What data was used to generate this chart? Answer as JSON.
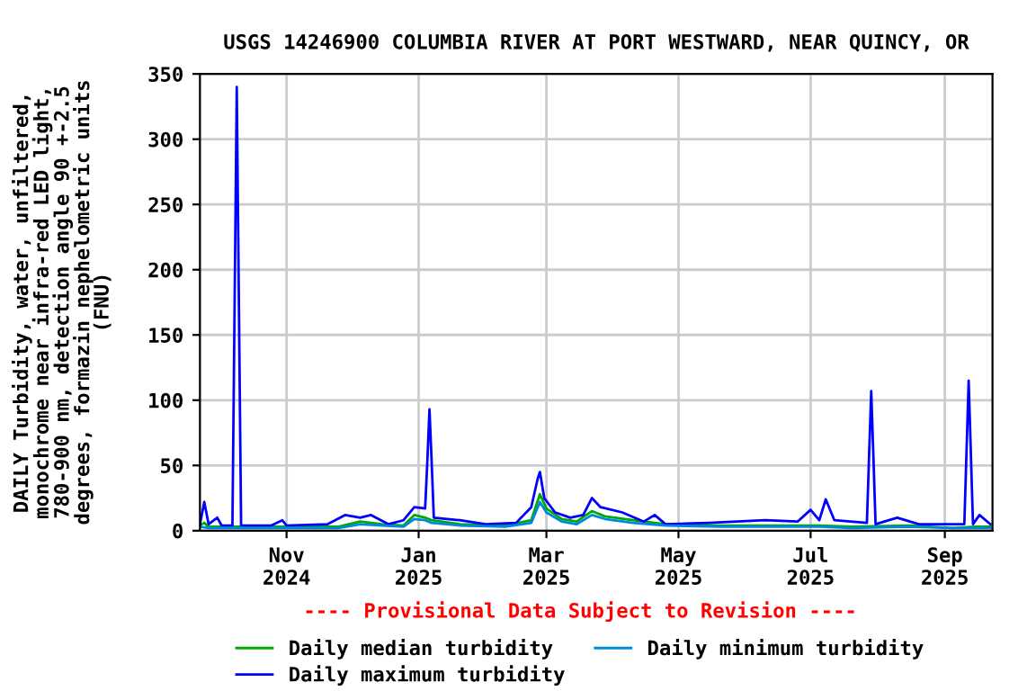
{
  "chart_data": {
    "type": "line",
    "title": "USGS 14246900 COLUMBIA RIVER AT PORT WESTWARD, NEAR QUINCY, OR",
    "ylabel": "DAILY Turbidity, water, unfiltered,\nmonochrome near infra-red LED light,\n780-900 nm, detection angle 90 +-2.5\ndegrees, formazin nephelometric units\n(FNU)",
    "annotations": [
      "---- Provisional Data Subject to Revision ----"
    ],
    "xlim": [
      "2024-09-22",
      "2025-09-23"
    ],
    "xticks": [
      {
        "value": "2024-11-01",
        "label": "Nov\n2024"
      },
      {
        "value": "2025-01-01",
        "label": "Jan\n2025"
      },
      {
        "value": "2025-03-01",
        "label": "Mar\n2025"
      },
      {
        "value": "2025-05-01",
        "label": "May\n2025"
      },
      {
        "value": "2025-07-01",
        "label": "Jul\n2025"
      },
      {
        "value": "2025-09-01",
        "label": "Sep\n2025"
      }
    ],
    "ylim": [
      0,
      350
    ],
    "yticks": [
      0,
      50,
      100,
      150,
      200,
      250,
      300,
      350
    ],
    "grid": true,
    "legend": "bottom",
    "line_style": "solid",
    "marker": "none",
    "series": [
      {
        "name": "Daily median turbidity",
        "color": "#00aa00",
        "x": [
          "2024-09-22",
          "2024-09-24",
          "2024-09-26",
          "2024-10-10",
          "2024-11-01",
          "2024-11-25",
          "2024-12-05",
          "2024-12-15",
          "2024-12-25",
          "2024-12-30",
          "2025-01-04",
          "2025-01-07",
          "2025-01-20",
          "2025-02-10",
          "2025-02-22",
          "2025-02-26",
          "2025-03-01",
          "2025-03-08",
          "2025-03-15",
          "2025-03-22",
          "2025-03-28",
          "2025-04-10",
          "2025-04-25",
          "2025-05-20",
          "2025-06-20",
          "2025-07-05",
          "2025-07-20",
          "2025-08-15",
          "2025-09-05",
          "2025-09-15",
          "2025-09-22"
        ],
        "values": [
          4,
          6,
          3,
          3,
          3,
          3,
          7,
          5,
          4,
          12,
          10,
          8,
          5,
          4,
          8,
          28,
          17,
          9,
          7,
          15,
          11,
          8,
          5,
          4,
          4,
          4,
          3,
          4,
          2,
          3,
          3
        ]
      },
      {
        "name": "Daily maximum turbidity",
        "color": "#0000ff",
        "x": [
          "2024-09-22",
          "2024-09-24",
          "2024-09-26",
          "2024-09-30",
          "2024-10-02",
          "2024-10-07",
          "2024-10-08",
          "2024-10-09",
          "2024-10-10",
          "2024-10-11",
          "2024-10-25",
          "2024-10-30",
          "2024-11-01",
          "2024-11-20",
          "2024-11-28",
          "2024-12-05",
          "2024-12-10",
          "2024-12-18",
          "2024-12-25",
          "2024-12-30",
          "2025-01-04",
          "2025-01-05",
          "2025-01-06",
          "2025-01-07",
          "2025-01-08",
          "2025-01-20",
          "2025-02-01",
          "2025-02-15",
          "2025-02-22",
          "2025-02-25",
          "2025-02-26",
          "2025-02-28",
          "2025-03-05",
          "2025-03-12",
          "2025-03-18",
          "2025-03-22",
          "2025-03-26",
          "2025-04-05",
          "2025-04-15",
          "2025-04-20",
          "2025-04-25",
          "2025-05-15",
          "2025-06-10",
          "2025-06-25",
          "2025-07-01",
          "2025-07-05",
          "2025-07-08",
          "2025-07-12",
          "2025-07-27",
          "2025-07-28",
          "2025-07-29",
          "2025-07-30",
          "2025-07-31",
          "2025-08-10",
          "2025-08-20",
          "2025-09-10",
          "2025-09-11",
          "2025-09-12",
          "2025-09-13",
          "2025-09-14",
          "2025-09-17",
          "2025-09-22"
        ],
        "values": [
          5,
          22,
          5,
          10,
          4,
          4,
          172,
          340,
          172,
          4,
          4,
          8,
          4,
          5,
          12,
          10,
          12,
          5,
          8,
          18,
          17,
          53,
          93,
          53,
          10,
          8,
          5,
          6,
          18,
          40,
          45,
          25,
          14,
          10,
          12,
          25,
          18,
          14,
          7,
          12,
          5,
          6,
          8,
          7,
          16,
          8,
          24,
          8,
          6,
          57,
          107,
          57,
          5,
          10,
          5,
          5,
          60,
          115,
          60,
          5,
          12,
          5
        ]
      },
      {
        "name": "Daily minimum turbidity",
        "color": "#0088dd",
        "x": [
          "2024-09-22",
          "2024-09-26",
          "2024-10-10",
          "2024-11-01",
          "2024-11-25",
          "2024-12-05",
          "2024-12-15",
          "2024-12-25",
          "2024-12-30",
          "2025-01-04",
          "2025-01-07",
          "2025-01-20",
          "2025-02-10",
          "2025-02-22",
          "2025-02-26",
          "2025-03-01",
          "2025-03-08",
          "2025-03-15",
          "2025-03-22",
          "2025-03-28",
          "2025-04-10",
          "2025-04-25",
          "2025-05-20",
          "2025-06-20",
          "2025-07-05",
          "2025-07-20",
          "2025-08-15",
          "2025-09-05",
          "2025-09-15",
          "2025-09-22"
        ],
        "values": [
          3,
          2,
          2,
          2,
          2,
          5,
          4,
          3,
          9,
          8,
          6,
          4,
          3,
          6,
          22,
          14,
          7,
          5,
          12,
          9,
          6,
          4,
          3,
          3,
          3,
          2,
          3,
          2,
          2,
          2
        ]
      }
    ]
  }
}
